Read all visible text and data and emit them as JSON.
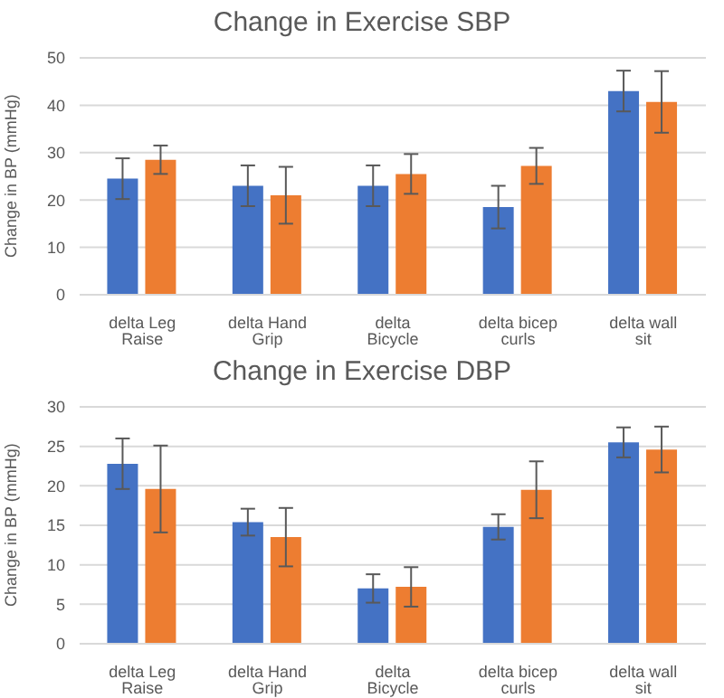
{
  "chart_data": [
    {
      "type": "bar",
      "title": "Change in Exercise SBP",
      "ylabel": "Change in BP (mmHg)",
      "categories": [
        "delta Leg Raise",
        "delta Hand Grip",
        "delta Bicycle",
        "delta bicep curls",
        "delta wall sit"
      ],
      "series": [
        {
          "color": "#4472c4",
          "values": [
            24.5,
            23,
            23,
            18.5,
            43
          ],
          "errors": [
            4.3,
            4.3,
            4.3,
            4.5,
            4.3
          ]
        },
        {
          "color": "#ed7d31",
          "values": [
            28.5,
            21,
            25.5,
            27.2,
            40.7
          ],
          "errors": [
            3,
            6,
            4.2,
            3.8,
            6.5
          ]
        }
      ],
      "ylim": [
        0,
        50
      ],
      "yticks": [
        0,
        10,
        20,
        30,
        40,
        50
      ],
      "grid": "y",
      "legend": false
    },
    {
      "type": "bar",
      "title": "Change in Exercise DBP",
      "ylabel": "Change in BP (mmHg)",
      "categories": [
        "delta Leg Raise",
        "delta Hand Grip",
        "delta Bicycle",
        "delta bicep curls",
        "delta wall sit"
      ],
      "series": [
        {
          "color": "#4472c4",
          "values": [
            22.8,
            15.4,
            7,
            14.8,
            25.5
          ],
          "errors": [
            3.2,
            1.7,
            1.8,
            1.6,
            1.9
          ]
        },
        {
          "color": "#ed7d31",
          "values": [
            19.6,
            13.5,
            7.2,
            19.5,
            24.6
          ],
          "errors": [
            5.5,
            3.7,
            2.5,
            3.6,
            2.9
          ]
        }
      ],
      "ylim": [
        0,
        30
      ],
      "yticks": [
        0,
        5,
        10,
        15,
        20,
        25,
        30
      ],
      "grid": "y",
      "legend": false
    }
  ]
}
